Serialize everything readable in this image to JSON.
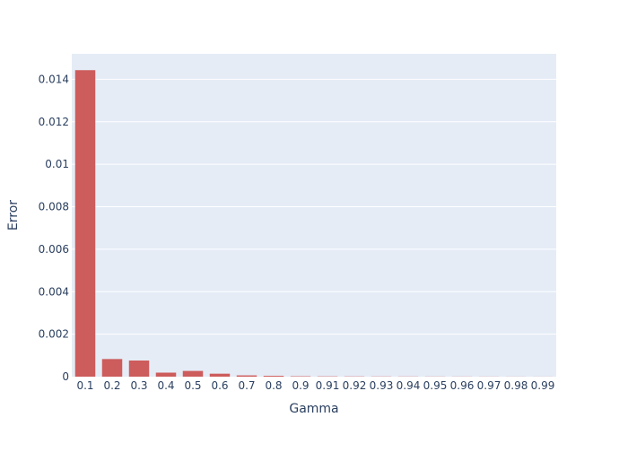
{
  "chart_data": {
    "type": "bar",
    "xlabel": "Gamma",
    "ylabel": "Error",
    "categories": [
      "0.1",
      "0.2",
      "0.3",
      "0.4",
      "0.5",
      "0.6",
      "0.7",
      "0.8",
      "0.9",
      "0.91",
      "0.92",
      "0.93",
      "0.94",
      "0.95",
      "0.96",
      "0.97",
      "0.98",
      "0.99"
    ],
    "values": [
      0.01443,
      0.00083,
      0.00076,
      0.00019,
      0.00027,
      0.00014,
      6e-05,
      4e-05,
      2e-05,
      1.5e-05,
      1.2e-05,
      1e-05,
      8e-06,
      7e-06,
      6e-06,
      5e-06,
      4e-06,
      3e-06
    ],
    "ylim": [
      0,
      0.0152
    ],
    "yticks": [
      0,
      0.002,
      0.004,
      0.006,
      0.008,
      0.01,
      0.012,
      0.014
    ],
    "ytick_labels": [
      "0",
      "0.002",
      "0.004",
      "0.006",
      "0.008",
      "0.01",
      "0.012",
      "0.014"
    ],
    "grid": true,
    "legend": "none",
    "colors": {
      "bar": "#cd5c5c",
      "plot_background": "#e5ecf6",
      "grid": "#ffffff",
      "text": "#2a3f5f"
    }
  }
}
